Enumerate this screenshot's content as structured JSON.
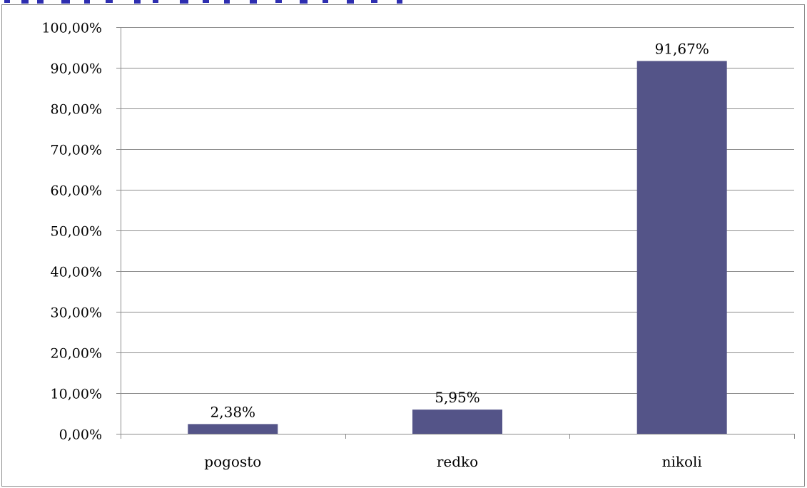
{
  "chart_data": {
    "type": "bar",
    "categories": [
      "pogosto",
      "redko",
      "nikoli"
    ],
    "values": [
      2.38,
      5.95,
      91.67
    ],
    "data_labels": [
      "2,38%",
      "5,95%",
      "91,67%"
    ],
    "y_ticks": [
      0,
      10,
      20,
      30,
      40,
      50,
      60,
      70,
      80,
      90,
      100
    ],
    "y_tick_labels": [
      "0,00%",
      "10,00%",
      "20,00%",
      "30,00%",
      "40,00%",
      "50,00%",
      "60,00%",
      "70,00%",
      "80,00%",
      "90,00%",
      "100,00%"
    ],
    "ylim": [
      0,
      100
    ],
    "grid": true,
    "legend": "none",
    "bar_color": "#545488",
    "gridline_color": "#8c8c8c"
  },
  "header": {
    "accent_color": "#2e2eb0"
  }
}
